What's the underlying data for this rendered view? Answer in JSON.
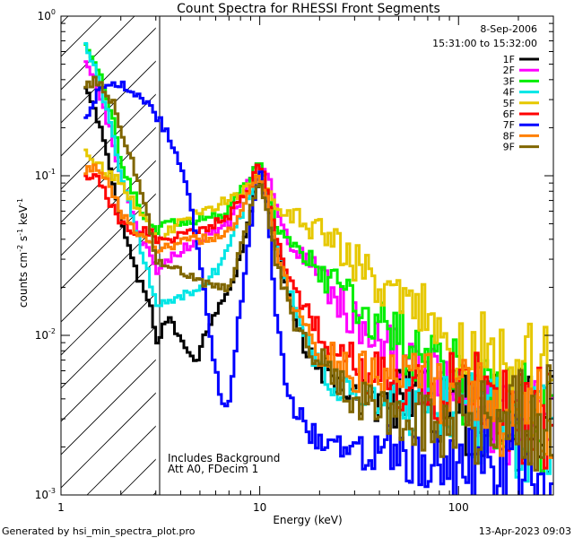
{
  "chart_data": {
    "type": "line",
    "title": "Count Spectra for RHESSI Front Segments",
    "xlabel": "Energy (keV)",
    "ylabel_parts": [
      "counts cm",
      "-2",
      " s",
      "-1",
      " keV",
      "-1"
    ],
    "xscale": "log",
    "yscale": "log",
    "xlim": [
      1,
      300
    ],
    "ylim": [
      0.001,
      1
    ],
    "x_ticks": [
      {
        "value": 1,
        "label": "1"
      },
      {
        "value": 10,
        "label": "10"
      },
      {
        "value": 100,
        "label": "100"
      }
    ],
    "y_ticks": [
      {
        "value": 1,
        "base": "10",
        "exp": "0"
      },
      {
        "value": 0.1,
        "base": "10",
        "exp": "-1"
      },
      {
        "value": 0.01,
        "base": "10",
        "exp": "-2"
      },
      {
        "value": 0.001,
        "base": "10",
        "exp": "-3"
      }
    ],
    "date": "8-Sep-2006",
    "time_range": "15:31:00 to 15:32:00",
    "hatched_region_kev": [
      1,
      3
    ],
    "annotations": [
      "Includes Background",
      "Att A0, FDecim 1"
    ],
    "series": [
      {
        "name": "1F",
        "color": "#000000",
        "anchors": [
          [
            1.3,
            0.38
          ],
          [
            1.5,
            0.25
          ],
          [
            1.8,
            0.1
          ],
          [
            2.0,
            0.055
          ],
          [
            2.4,
            0.024
          ],
          [
            2.8,
            0.016
          ],
          [
            3.0,
            0.009
          ],
          [
            3.5,
            0.013
          ],
          [
            4.0,
            0.009
          ],
          [
            4.8,
            0.007
          ],
          [
            5.5,
            0.011
          ],
          [
            6.5,
            0.017
          ],
          [
            7.5,
            0.022
          ],
          [
            8.5,
            0.045
          ],
          [
            9.5,
            0.08
          ],
          [
            10.5,
            0.09
          ],
          [
            11.5,
            0.05
          ],
          [
            13,
            0.025
          ],
          [
            15,
            0.012
          ],
          [
            18,
            0.007
          ],
          [
            22,
            0.006
          ],
          [
            30,
            0.0045
          ],
          [
            40,
            0.004
          ],
          [
            60,
            0.004
          ],
          [
            100,
            0.0035
          ],
          [
            150,
            0.003
          ],
          [
            200,
            0.0028
          ],
          [
            300,
            0.003
          ]
        ]
      },
      {
        "name": "2F",
        "color": "#ff00ff",
        "anchors": [
          [
            1.3,
            0.55
          ],
          [
            1.5,
            0.38
          ],
          [
            1.8,
            0.18
          ],
          [
            2.0,
            0.1
          ],
          [
            2.4,
            0.045
          ],
          [
            2.8,
            0.032
          ],
          [
            3.0,
            0.025
          ],
          [
            3.5,
            0.03
          ],
          [
            4.2,
            0.035
          ],
          [
            5,
            0.04
          ],
          [
            6,
            0.045
          ],
          [
            7,
            0.05
          ],
          [
            8,
            0.07
          ],
          [
            9,
            0.1
          ],
          [
            10,
            0.12
          ],
          [
            11,
            0.1
          ],
          [
            12,
            0.065
          ],
          [
            14,
            0.04
          ],
          [
            17,
            0.03
          ],
          [
            22,
            0.02
          ],
          [
            30,
            0.012
          ],
          [
            45,
            0.008
          ],
          [
            70,
            0.005
          ],
          [
            100,
            0.004
          ],
          [
            150,
            0.003
          ],
          [
            200,
            0.0028
          ],
          [
            300,
            0.0025
          ]
        ]
      },
      {
        "name": "3F",
        "color": "#00ee00",
        "anchors": [
          [
            1.3,
            0.7
          ],
          [
            1.5,
            0.5
          ],
          [
            1.8,
            0.25
          ],
          [
            2.0,
            0.12
          ],
          [
            2.4,
            0.07
          ],
          [
            2.8,
            0.05
          ],
          [
            3.0,
            0.045
          ],
          [
            3.5,
            0.05
          ],
          [
            4.2,
            0.05
          ],
          [
            5,
            0.055
          ],
          [
            6,
            0.055
          ],
          [
            7,
            0.06
          ],
          [
            8,
            0.08
          ],
          [
            9,
            0.1
          ],
          [
            10,
            0.12
          ],
          [
            11,
            0.08
          ],
          [
            12,
            0.05
          ],
          [
            15,
            0.035
          ],
          [
            20,
            0.025
          ],
          [
            28,
            0.017
          ],
          [
            40,
            0.012
          ],
          [
            60,
            0.008
          ],
          [
            100,
            0.005
          ],
          [
            150,
            0.004
          ],
          [
            200,
            0.0035
          ],
          [
            300,
            0.003
          ]
        ]
      },
      {
        "name": "4F",
        "color": "#00e6e6",
        "anchors": [
          [
            1.3,
            0.72
          ],
          [
            1.5,
            0.45
          ],
          [
            1.8,
            0.2
          ],
          [
            2.0,
            0.1
          ],
          [
            2.4,
            0.045
          ],
          [
            2.8,
            0.022
          ],
          [
            3.0,
            0.016
          ],
          [
            3.5,
            0.017
          ],
          [
            4.2,
            0.018
          ],
          [
            5,
            0.02
          ],
          [
            6,
            0.025
          ],
          [
            7,
            0.035
          ],
          [
            8,
            0.055
          ],
          [
            9,
            0.08
          ],
          [
            10,
            0.1
          ],
          [
            11,
            0.07
          ],
          [
            12,
            0.04
          ],
          [
            14,
            0.02
          ],
          [
            18,
            0.008
          ],
          [
            25,
            0.0045
          ],
          [
            40,
            0.0035
          ],
          [
            60,
            0.0033
          ],
          [
            100,
            0.0032
          ],
          [
            150,
            0.003
          ],
          [
            200,
            0.0028
          ],
          [
            300,
            0.0025
          ]
        ]
      },
      {
        "name": "5F",
        "color": "#e6c800",
        "anchors": [
          [
            1.3,
            0.15
          ],
          [
            1.5,
            0.12
          ],
          [
            1.8,
            0.1
          ],
          [
            2.0,
            0.09
          ],
          [
            2.4,
            0.065
          ],
          [
            2.8,
            0.05
          ],
          [
            3.0,
            0.04
          ],
          [
            3.5,
            0.045
          ],
          [
            4.2,
            0.055
          ],
          [
            5,
            0.06
          ],
          [
            6,
            0.065
          ],
          [
            7,
            0.07
          ],
          [
            8,
            0.075
          ],
          [
            9,
            0.09
          ],
          [
            10,
            0.1
          ],
          [
            11,
            0.08
          ],
          [
            12,
            0.065
          ],
          [
            15,
            0.055
          ],
          [
            20,
            0.045
          ],
          [
            28,
            0.033
          ],
          [
            40,
            0.02
          ],
          [
            60,
            0.014
          ],
          [
            100,
            0.009
          ],
          [
            150,
            0.0065
          ],
          [
            200,
            0.0055
          ],
          [
            300,
            0.005
          ]
        ]
      },
      {
        "name": "6F",
        "color": "#ff0000",
        "anchors": [
          [
            1.3,
            0.1
          ],
          [
            1.5,
            0.1
          ],
          [
            1.8,
            0.065
          ],
          [
            2.0,
            0.05
          ],
          [
            2.4,
            0.045
          ],
          [
            2.8,
            0.045
          ],
          [
            3.0,
            0.04
          ],
          [
            3.5,
            0.04
          ],
          [
            4.2,
            0.042
          ],
          [
            5,
            0.045
          ],
          [
            6,
            0.05
          ],
          [
            7,
            0.055
          ],
          [
            8,
            0.07
          ],
          [
            9,
            0.09
          ],
          [
            10,
            0.12
          ],
          [
            11,
            0.08
          ],
          [
            12,
            0.04
          ],
          [
            15,
            0.02
          ],
          [
            20,
            0.01
          ],
          [
            28,
            0.007
          ],
          [
            40,
            0.0055
          ],
          [
            60,
            0.005
          ],
          [
            100,
            0.0045
          ],
          [
            150,
            0.004
          ],
          [
            200,
            0.0035
          ],
          [
            300,
            0.003
          ]
        ]
      },
      {
        "name": "7F",
        "color": "#0000ff",
        "anchors": [
          [
            1.3,
            0.22
          ],
          [
            1.5,
            0.32
          ],
          [
            1.8,
            0.38
          ],
          [
            2.0,
            0.37
          ],
          [
            2.4,
            0.33
          ],
          [
            2.8,
            0.28
          ],
          [
            3.0,
            0.24
          ],
          [
            3.5,
            0.18
          ],
          [
            4.2,
            0.1
          ],
          [
            5,
            0.03
          ],
          [
            5.5,
            0.012
          ],
          [
            6,
            0.006
          ],
          [
            6.5,
            0.0035
          ],
          [
            7,
            0.004
          ],
          [
            8,
            0.015
          ],
          [
            9,
            0.05
          ],
          [
            10,
            0.11
          ],
          [
            11,
            0.06
          ],
          [
            12,
            0.015
          ],
          [
            14,
            0.004
          ],
          [
            18,
            0.0025
          ],
          [
            25,
            0.0018
          ],
          [
            40,
            0.002
          ],
          [
            60,
            0.0018
          ],
          [
            100,
            0.0015
          ],
          [
            150,
            0.0015
          ],
          [
            300,
            0.0015
          ]
        ]
      },
      {
        "name": "8F",
        "color": "#ff8000",
        "anchors": [
          [
            1.3,
            0.1
          ],
          [
            1.5,
            0.12
          ],
          [
            1.8,
            0.08
          ],
          [
            2.0,
            0.06
          ],
          [
            2.4,
            0.045
          ],
          [
            2.8,
            0.04
          ],
          [
            3.0,
            0.035
          ],
          [
            3.5,
            0.035
          ],
          [
            4.2,
            0.04
          ],
          [
            5,
            0.04
          ],
          [
            6,
            0.04
          ],
          [
            7,
            0.045
          ],
          [
            8,
            0.06
          ],
          [
            9,
            0.08
          ],
          [
            10,
            0.1
          ],
          [
            11,
            0.07
          ],
          [
            12,
            0.035
          ],
          [
            15,
            0.014
          ],
          [
            20,
            0.008
          ],
          [
            28,
            0.006
          ],
          [
            40,
            0.0055
          ],
          [
            60,
            0.005
          ],
          [
            100,
            0.004
          ],
          [
            150,
            0.0035
          ],
          [
            200,
            0.003
          ],
          [
            300,
            0.0025
          ]
        ]
      },
      {
        "name": "9F",
        "color": "#806600",
        "anchors": [
          [
            1.3,
            0.35
          ],
          [
            1.5,
            0.4
          ],
          [
            1.8,
            0.3
          ],
          [
            2.0,
            0.2
          ],
          [
            2.4,
            0.1
          ],
          [
            2.8,
            0.05
          ],
          [
            3.0,
            0.03
          ],
          [
            3.5,
            0.028
          ],
          [
            4.2,
            0.025
          ],
          [
            5,
            0.022
          ],
          [
            6,
            0.02
          ],
          [
            7,
            0.02
          ],
          [
            8,
            0.035
          ],
          [
            9,
            0.06
          ],
          [
            10,
            0.09
          ],
          [
            11,
            0.06
          ],
          [
            12,
            0.03
          ],
          [
            15,
            0.012
          ],
          [
            20,
            0.007
          ],
          [
            28,
            0.0045
          ],
          [
            40,
            0.0035
          ],
          [
            60,
            0.003
          ],
          [
            100,
            0.003
          ],
          [
            150,
            0.003
          ],
          [
            200,
            0.0032
          ],
          [
            300,
            0.003
          ]
        ]
      }
    ]
  },
  "footer": {
    "generated_by": "Generated by hsi_min_spectra_plot.pro",
    "timestamp": "13-Apr-2023 09:03"
  }
}
